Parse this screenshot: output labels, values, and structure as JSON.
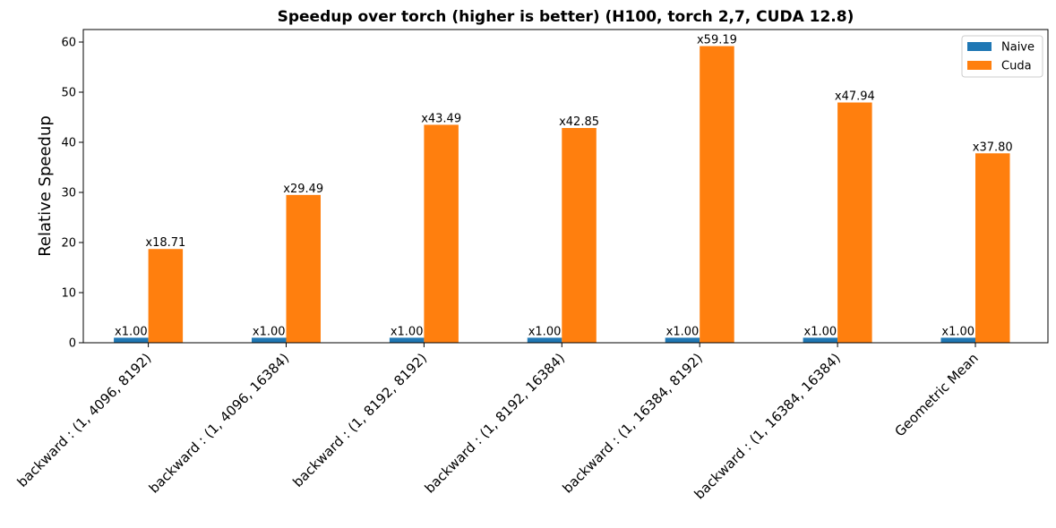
{
  "chart_data": {
    "type": "bar",
    "title": "Speedup over torch (higher is better) (H100, torch 2,7, CUDA 12.8)",
    "xlabel": "",
    "ylabel": "Relative Speedup",
    "ylim": [
      0,
      62.5
    ],
    "yticks": [
      0,
      10,
      20,
      30,
      40,
      50,
      60
    ],
    "grid": false,
    "legend_position": "top-right",
    "categories": [
      "backward : (1, 4096, 8192)",
      "backward : (1, 4096, 16384)",
      "backward : (1, 8192, 8192)",
      "backward : (1, 8192, 16384)",
      "backward : (1, 16384, 8192)",
      "backward : (1, 16384, 16384)",
      "Geometric Mean"
    ],
    "series": [
      {
        "name": "Naive",
        "color": "#1f77b4",
        "values": [
          1.0,
          1.0,
          1.0,
          1.0,
          1.0,
          1.0,
          1.0
        ],
        "labels": [
          "x1.00",
          "x1.00",
          "x1.00",
          "x1.00",
          "x1.00",
          "x1.00",
          "x1.00"
        ]
      },
      {
        "name": "Cuda",
        "color": "#ff7f0e",
        "values": [
          18.71,
          29.49,
          43.49,
          42.85,
          59.19,
          47.94,
          37.8
        ],
        "labels": [
          "x18.71",
          "x29.49",
          "x43.49",
          "x42.85",
          "x59.19",
          "x47.94",
          "x37.80"
        ]
      }
    ]
  }
}
